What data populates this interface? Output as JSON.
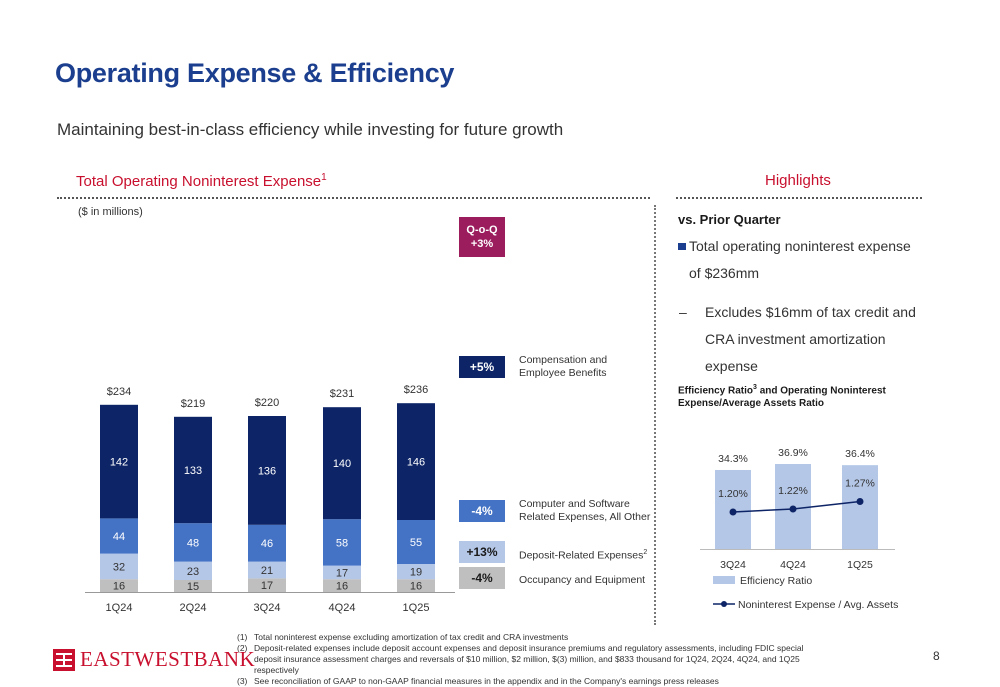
{
  "header": {
    "title": "Operating Expense & Efficiency",
    "subtitle": "Maintaining best-in-class efficiency while investing for future growth"
  },
  "left_panel": {
    "heading": "Total Operating Noninterest Expense",
    "heading_sup": "1",
    "units": "($ in millions)"
  },
  "qoq": {
    "title": "Q-o-Q",
    "value": "+3%",
    "color": "#9b1d5e"
  },
  "segment_changes": [
    {
      "label": "Compensation and\nEmployee Benefits",
      "change": "+5%",
      "color": "#0d2466"
    },
    {
      "label": "Computer and Software\nRelated Expenses, All Other",
      "change": "-4%",
      "color": "#4472c4"
    },
    {
      "label": "Deposit-Related Expenses",
      "label_sup": "2",
      "change": "+13%",
      "color": "#b4c7e7"
    },
    {
      "label": "Occupancy and Equipment",
      "change": "-4%",
      "color": "#bfbfbf"
    }
  ],
  "chart_data": [
    {
      "type": "bar",
      "stacked": true,
      "categories": [
        "1Q24",
        "2Q24",
        "3Q24",
        "4Q24",
        "1Q25"
      ],
      "totals": [
        "$234",
        "$219",
        "$220",
        "$231",
        "$236"
      ],
      "series": [
        {
          "name": "Occupancy and Equipment",
          "values": [
            16,
            15,
            17,
            16,
            16
          ],
          "color": "#bfbfbf"
        },
        {
          "name": "Deposit-Related Expenses",
          "values": [
            32,
            23,
            21,
            17,
            19
          ],
          "color": "#b4c7e7"
        },
        {
          "name": "Computer and Software Related Expenses, All Other",
          "values": [
            44,
            48,
            46,
            58,
            55
          ],
          "color": "#4472c4"
        },
        {
          "name": "Compensation and Employee Benefits",
          "values": [
            142,
            133,
            136,
            140,
            146
          ],
          "color": "#0d2466"
        }
      ],
      "ylim": [
        0,
        250
      ]
    },
    {
      "type": "bar",
      "title": "Efficiency Ratio",
      "title_sup": "3",
      "title_rest": " and Operating Noninterest Expense/Average Assets Ratio",
      "categories": [
        "3Q24",
        "4Q24",
        "1Q25"
      ],
      "series": [
        {
          "name": "Efficiency Ratio",
          "values": [
            34.3,
            36.9,
            36.4
          ],
          "labels": [
            "34.3%",
            "36.9%",
            "36.4%"
          ],
          "color": "#b4c7e7"
        },
        {
          "name": "Noninterest Expense / Avg. Assets",
          "type": "line",
          "values": [
            1.2,
            1.22,
            1.27
          ],
          "labels": [
            "1.20%",
            "1.22%",
            "1.27%"
          ],
          "color": "#0d2466"
        }
      ],
      "ylim": [
        0,
        40
      ],
      "line_ylim": [
        0,
        2.5
      ]
    }
  ],
  "highlights": {
    "heading": "Highlights",
    "vs_prior": "vs. Prior Quarter",
    "bullet": "Total operating noninterest expense of $236mm",
    "sub_bullet": "Excludes $16mm of tax credit and CRA investment amortization expense"
  },
  "footnotes": [
    {
      "num": "(1)",
      "text": "Total noninterest expense excluding amortization of tax credit and CRA investments"
    },
    {
      "num": "(2)",
      "text": "Deposit-related expenses include deposit account expenses and deposit insurance premiums and regulatory assessments, including FDIC special deposit insurance assessment charges and reversals of $10 million, $2 million, $(3) million, and $833 thousand for 1Q24, 2Q24, 4Q24, and 1Q25 respectively"
    },
    {
      "num": "(3)",
      "text": "See reconciliation of GAAP to non-GAAP financial measures in the appendix and in the Company's earnings press releases"
    }
  ],
  "logo_text": "EASTWESTBANK",
  "page_number": "8"
}
